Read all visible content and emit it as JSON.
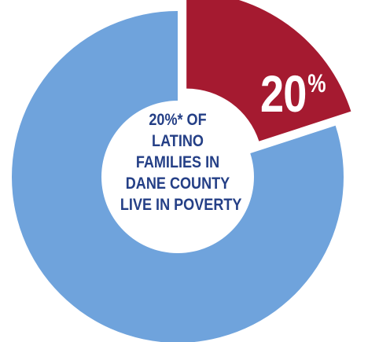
{
  "colors": {
    "main_slice": "#6fa3dc",
    "highlight_slice": "#a51a30",
    "center_text": "#243f86",
    "slice_label": "#ffffff"
  },
  "center_label": {
    "lines": [
      "20%* OF",
      "LATINO",
      "FAMILIES IN",
      "DANE COUNTY",
      "LIVE IN POVERTY"
    ]
  },
  "chart_data": {
    "type": "pie",
    "donut": true,
    "slices": [
      {
        "value": 20,
        "label": "20",
        "suffix": "%",
        "color": "#a51a30",
        "exploded": true
      },
      {
        "value": 80,
        "label": "",
        "color": "#6fa3dc",
        "exploded": false
      }
    ]
  }
}
